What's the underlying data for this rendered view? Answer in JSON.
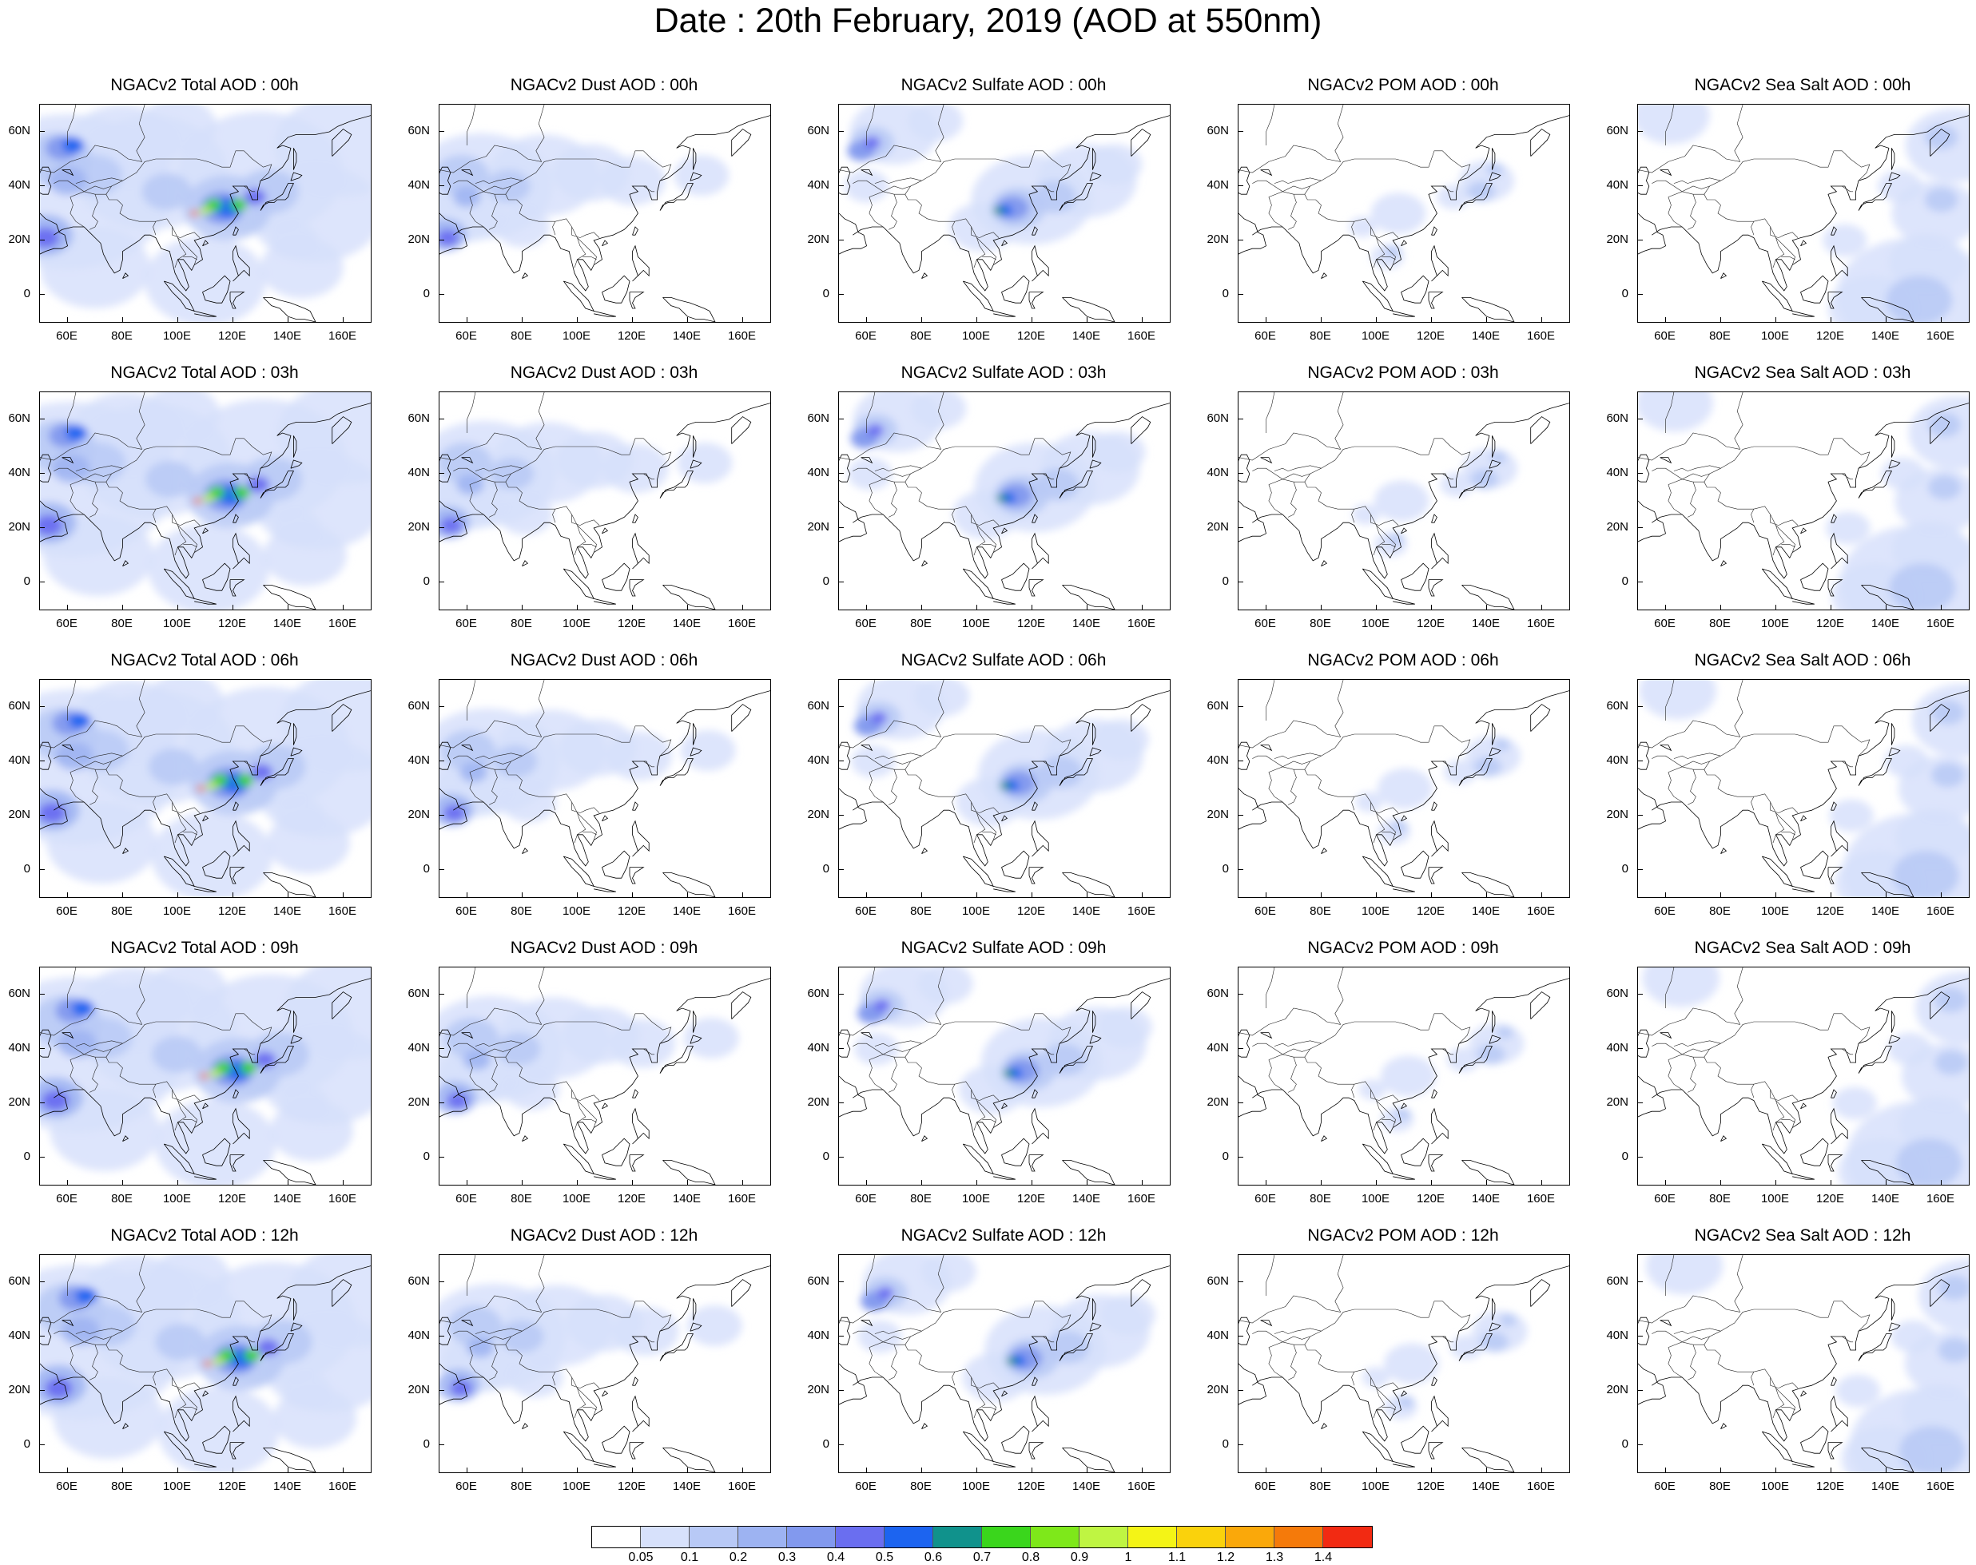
{
  "title": "Date : 20th February, 2019 (AOD at 550nm)",
  "x_ticks": [
    "60E",
    "80E",
    "100E",
    "120E",
    "140E",
    "160E"
  ],
  "y_ticks": [
    "60N",
    "40N",
    "20N",
    "0"
  ],
  "map_extent": {
    "lon": [
      50,
      170
    ],
    "lat": [
      -10,
      70
    ]
  },
  "species": [
    "Total",
    "Dust",
    "Sulfate",
    "POM",
    "Sea Salt"
  ],
  "hours": [
    "00h",
    "03h",
    "06h",
    "09h",
    "12h"
  ],
  "panel_titles": [
    [
      "NGACv2 Total AOD : 00h",
      "NGACv2 Dust AOD : 00h",
      "NGACv2 Sulfate AOD : 00h",
      "NGACv2 POM AOD : 00h",
      "NGACv2 Sea Salt AOD : 00h"
    ],
    [
      "NGACv2 Total AOD : 03h",
      "NGACv2 Dust AOD : 03h",
      "NGACv2 Sulfate AOD : 03h",
      "NGACv2 POM AOD : 03h",
      "NGACv2 Sea Salt AOD : 03h"
    ],
    [
      "NGACv2 Total AOD : 06h",
      "NGACv2 Dust AOD : 06h",
      "NGACv2 Sulfate AOD : 06h",
      "NGACv2 POM AOD : 06h",
      "NGACv2 Sea Salt AOD : 06h"
    ],
    [
      "NGACv2 Total AOD : 09h",
      "NGACv2 Dust AOD : 09h",
      "NGACv2 Sulfate AOD : 09h",
      "NGACv2 POM AOD : 09h",
      "NGACv2 Sea Salt  AOD : 09h"
    ],
    [
      "NGACv2 Total AOD  : 12h",
      "NGACv2 Dust AOD : 12h",
      "NGACv2 Sulfate AOD : 12h",
      "NGACv2 POM  AOD : 12h",
      "NGACv2 Sea Salt  AOD : 12h"
    ]
  ],
  "colorbar": {
    "labels": [
      "0.05",
      "0.1",
      "0.2",
      "0.3",
      "0.4",
      "0.5",
      "0.6",
      "0.7",
      "0.8",
      "0.9",
      "1",
      "1.1",
      "1.2",
      "1.3",
      "1.4"
    ],
    "colors": [
      "#ffffff",
      "#d7e1fb",
      "#b8c9f6",
      "#9db3f2",
      "#8299ee",
      "#6a6ef0",
      "#1c64f0",
      "#10928c",
      "#3ad61c",
      "#7ee81a",
      "#bff542",
      "#f4f416",
      "#fad20c",
      "#faa80a",
      "#f57a0a",
      "#f22a12"
    ]
  }
}
